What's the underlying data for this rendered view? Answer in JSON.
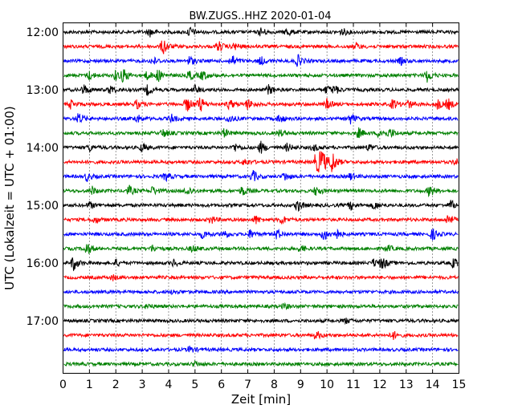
{
  "chart_data": {
    "type": "line",
    "title": "BW.ZUGS..HHZ 2020-01-04",
    "xlabel": "Zeit  [min]",
    "ylabel": "UTC (Lokalzeit = UTC + 01:00)",
    "xlim": [
      0,
      15
    ],
    "x_ticks": [
      "0",
      "1",
      "2",
      "3",
      "4",
      "5",
      "6",
      "7",
      "8",
      "9",
      "10",
      "11",
      "12",
      "13",
      "14",
      "15"
    ],
    "y_ticks": [
      "12:00",
      "13:00",
      "14:00",
      "15:00",
      "16:00",
      "17:00"
    ],
    "grid": "vertical dotted",
    "trace_colors": [
      "#000000",
      "#ff0000",
      "#0000ff",
      "#008000"
    ],
    "traces": [
      {
        "start": "12:00",
        "events": [
          [
            3.3,
            5
          ],
          [
            4.8,
            6
          ],
          [
            7.5,
            5
          ],
          [
            8.5,
            5
          ],
          [
            10.6,
            4
          ]
        ]
      },
      {
        "start": "12:15",
        "events": [
          [
            3.8,
            10
          ],
          [
            5.9,
            6
          ],
          [
            6.5,
            4
          ],
          [
            11.1,
            4
          ]
        ]
      },
      {
        "start": "12:30",
        "events": [
          [
            3.4,
            5
          ],
          [
            4.8,
            6
          ],
          [
            6.4,
            7
          ],
          [
            7.5,
            5
          ],
          [
            8.9,
            7
          ],
          [
            12.8,
            4
          ]
        ]
      },
      {
        "start": "12:45",
        "events": [
          [
            1.0,
            5
          ],
          [
            2.0,
            6
          ],
          [
            2.3,
            8
          ],
          [
            3.2,
            5
          ],
          [
            3.6,
            7
          ],
          [
            4.8,
            6
          ],
          [
            5.3,
            6
          ],
          [
            13.8,
            8
          ]
        ]
      },
      {
        "start": "13:00",
        "events": [
          [
            0.8,
            6
          ],
          [
            1.8,
            5
          ],
          [
            3.2,
            6
          ],
          [
            5.0,
            5
          ],
          [
            7.8,
            6
          ],
          [
            10.0,
            5
          ],
          [
            10.3,
            5
          ]
        ]
      },
      {
        "start": "13:15",
        "events": [
          [
            0.3,
            5
          ],
          [
            2.8,
            5
          ],
          [
            4.7,
            9
          ],
          [
            5.2,
            9
          ],
          [
            6.3,
            6
          ],
          [
            7.0,
            6
          ],
          [
            10.0,
            6
          ],
          [
            12.5,
            6
          ],
          [
            13.1,
            5
          ],
          [
            14.2,
            6
          ],
          [
            14.6,
            6
          ]
        ]
      },
      {
        "start": "13:30",
        "events": [
          [
            0.6,
            7
          ],
          [
            2.8,
            5
          ],
          [
            4.1,
            5
          ],
          [
            6.3,
            5
          ],
          [
            8.2,
            5
          ],
          [
            10.9,
            6
          ]
        ]
      },
      {
        "start": "13:45",
        "events": [
          [
            3.8,
            5
          ],
          [
            6.1,
            5
          ],
          [
            8.2,
            4
          ],
          [
            11.2,
            6
          ],
          [
            12.0,
            6
          ],
          [
            12.4,
            5
          ]
        ]
      },
      {
        "start": "14:00",
        "events": [
          [
            1.0,
            4
          ],
          [
            3.0,
            5
          ],
          [
            6.5,
            5
          ],
          [
            7.5,
            7
          ],
          [
            8.5,
            5
          ],
          [
            9.5,
            4
          ],
          [
            11.6,
            4
          ]
        ]
      },
      {
        "start": "14:15",
        "events": [
          [
            6.9,
            4
          ],
          [
            9.6,
            13
          ],
          [
            9.8,
            15
          ],
          [
            10.2,
            13
          ],
          [
            14.9,
            5
          ]
        ]
      },
      {
        "start": "14:30",
        "events": [
          [
            0.9,
            5
          ],
          [
            3.9,
            5
          ],
          [
            7.2,
            7
          ],
          [
            8.4,
            5
          ],
          [
            10.9,
            4
          ]
        ]
      },
      {
        "start": "14:45",
        "events": [
          [
            1.1,
            5
          ],
          [
            2.5,
            6
          ],
          [
            3.4,
            5
          ],
          [
            4.7,
            6
          ],
          [
            6.8,
            6
          ],
          [
            9.6,
            6
          ],
          [
            13.9,
            7
          ]
        ]
      },
      {
        "start": "15:00",
        "events": [
          [
            1.0,
            4
          ],
          [
            8.9,
            7
          ],
          [
            10.9,
            5
          ],
          [
            11.8,
            5
          ],
          [
            14.7,
            6
          ]
        ]
      },
      {
        "start": "15:15",
        "events": [
          [
            1.2,
            4
          ],
          [
            5.6,
            5
          ],
          [
            7.3,
            5
          ],
          [
            8.3,
            5
          ],
          [
            14.6,
            7
          ]
        ]
      },
      {
        "start": "15:30",
        "events": [
          [
            5.3,
            5
          ],
          [
            6.1,
            5
          ],
          [
            7.1,
            5
          ],
          [
            8.1,
            6
          ],
          [
            9.9,
            8
          ],
          [
            10.3,
            8
          ],
          [
            14.0,
            7
          ]
        ]
      },
      {
        "start": "15:45",
        "events": [
          [
            0.9,
            8
          ],
          [
            3.4,
            4
          ],
          [
            4.9,
            4
          ],
          [
            9.0,
            4
          ],
          [
            12.3,
            4
          ]
        ]
      },
      {
        "start": "16:00",
        "events": [
          [
            0.4,
            9
          ],
          [
            2.0,
            4
          ],
          [
            4.2,
            4
          ],
          [
            11.8,
            5
          ],
          [
            12.1,
            7
          ],
          [
            14.8,
            6
          ]
        ]
      },
      {
        "start": "16:15",
        "events": [
          [
            1.9,
            3
          ]
        ]
      },
      {
        "start": "16:30",
        "events": [
          [
            4.2,
            3
          ]
        ]
      },
      {
        "start": "16:45",
        "events": [
          [
            3.2,
            3
          ],
          [
            8.4,
            3
          ]
        ]
      },
      {
        "start": "17:00",
        "events": [
          [
            10.7,
            3
          ]
        ]
      },
      {
        "start": "17:15",
        "events": [
          [
            9.6,
            5
          ],
          [
            12.5,
            5
          ]
        ]
      },
      {
        "start": "17:30",
        "events": [
          [
            4.8,
            4
          ]
        ]
      },
      {
        "start": "17:45",
        "events": [
          [
            5.0,
            3
          ]
        ]
      }
    ]
  }
}
